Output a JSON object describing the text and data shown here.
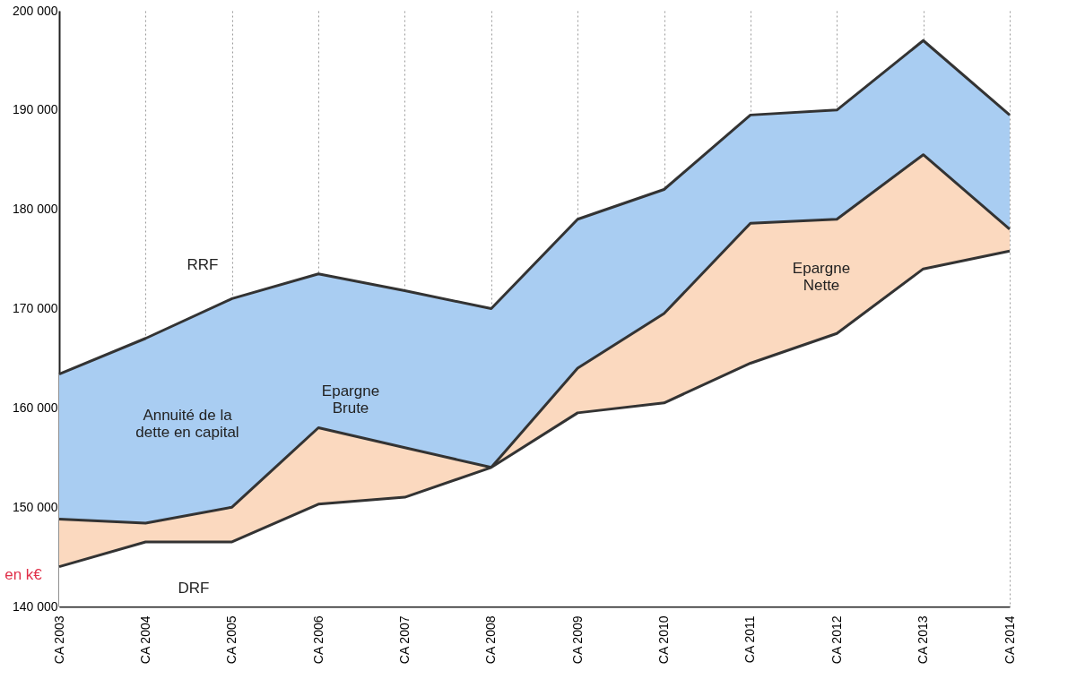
{
  "chart_data": {
    "type": "area",
    "categories": [
      "CA 2003",
      "CA 2004",
      "CA 2005",
      "CA 2006",
      "CA 2007",
      "CA 2008",
      "CA 2009",
      "CA 2010",
      "CA 2011",
      "CA 2012",
      "CA 2013",
      "CA 2014"
    ],
    "series": [
      {
        "color": "#a9cdf2",
        "values": [
          163400,
          167000,
          171000,
          173500,
          171800,
          170000,
          179000,
          182000,
          189500,
          190000,
          197000,
          189500
        ]
      },
      {
        "color": "#fbd9bf",
        "values": [
          148800,
          148400,
          150000,
          158000,
          156000,
          154000,
          164000,
          169500,
          178600,
          179000,
          185500,
          178000
        ]
      },
      {
        "color": "#ffffff",
        "values": [
          144000,
          146500,
          146500,
          150300,
          151000,
          154000,
          159500,
          160500,
          164500,
          167500,
          174000,
          175800
        ]
      }
    ],
    "ylim": [
      140000,
      200000
    ],
    "yticks": [
      {
        "value": 140000,
        "label": "140 000"
      },
      {
        "value": 150000,
        "label": "150 000"
      },
      {
        "value": 160000,
        "label": "160 000"
      },
      {
        "value": 170000,
        "label": "170 000"
      },
      {
        "value": 180000,
        "label": "180 000"
      },
      {
        "value": 190000,
        "label": "190 000"
      },
      {
        "value": 200000,
        "label": "200 000"
      }
    ],
    "grid": "x",
    "annotations": [
      "RRF",
      "Annuité de la\ndette en capital",
      "Epargne\nBrute",
      "Epargne\nNette",
      "DRF",
      "en k€"
    ]
  }
}
